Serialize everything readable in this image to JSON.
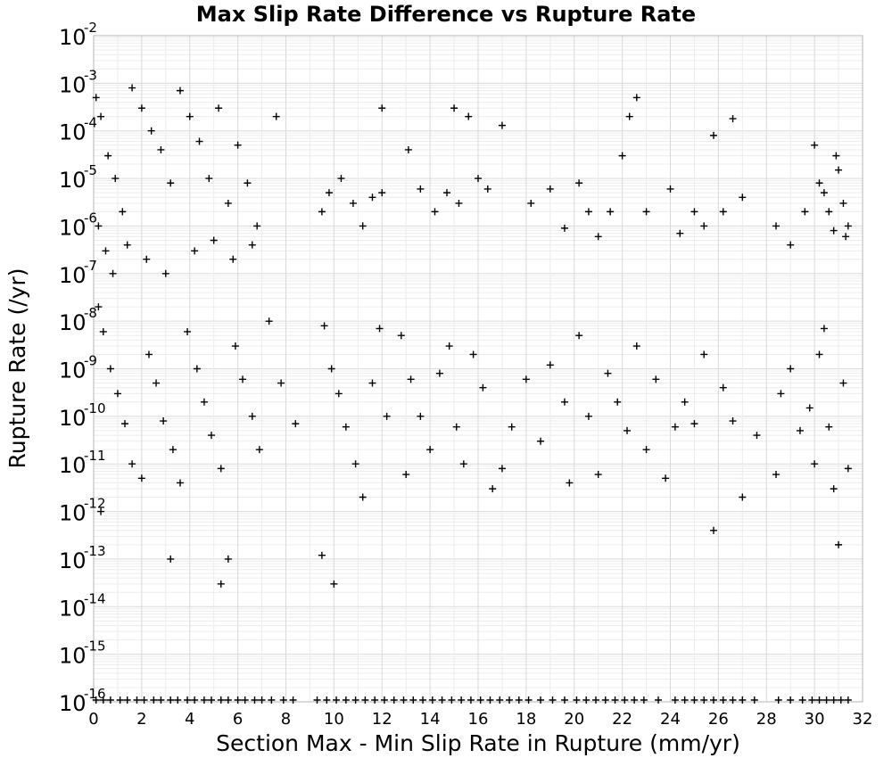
{
  "chart_data": {
    "type": "scatter",
    "title": "Max Slip Rate Difference vs Rupture Rate",
    "xlabel": "Section Max - Min Slip Rate in Rupture (mm/yr)",
    "ylabel": "Rupture Rate (/yr)",
    "xlim": [
      0,
      32
    ],
    "ylim": [
      1e-16,
      0.01
    ],
    "yscale": "log",
    "grid": true,
    "marker": "+",
    "marker_color": "#000000",
    "x_ticks": [
      "0",
      "2",
      "4",
      "6",
      "8",
      "10",
      "12",
      "14",
      "16",
      "18",
      "20",
      "22",
      "24",
      "26",
      "28",
      "30",
      "32"
    ],
    "y_ticks": [
      {
        "base": "10",
        "exp": "-2"
      },
      {
        "base": "10",
        "exp": "-3"
      },
      {
        "base": "10",
        "exp": "-4"
      },
      {
        "base": "10",
        "exp": "-5"
      },
      {
        "base": "10",
        "exp": "-6"
      },
      {
        "base": "10",
        "exp": "-7"
      },
      {
        "base": "10",
        "exp": "-8"
      },
      {
        "base": "10",
        "exp": "-9"
      },
      {
        "base": "10",
        "exp": "-10"
      },
      {
        "base": "10",
        "exp": "-11"
      },
      {
        "base": "10",
        "exp": "-12"
      },
      {
        "base": "10",
        "exp": "-13"
      },
      {
        "base": "10",
        "exp": "-14"
      },
      {
        "base": "10",
        "exp": "-15"
      },
      {
        "base": "10",
        "exp": "-16"
      }
    ],
    "points": [
      [
        0.1,
        0.0005
      ],
      [
        0.3,
        0.0002
      ],
      [
        0.6,
        3e-05
      ],
      [
        0.9,
        1e-05
      ],
      [
        1.2,
        2e-06
      ],
      [
        1.6,
        0.0008
      ],
      [
        2.0,
        0.0003
      ],
      [
        2.4,
        0.0001
      ],
      [
        2.8,
        4e-05
      ],
      [
        3.2,
        8e-06
      ],
      [
        3.6,
        0.0007
      ],
      [
        4.0,
        0.0002
      ],
      [
        4.4,
        6e-05
      ],
      [
        4.8,
        1e-05
      ],
      [
        5.2,
        0.0003
      ],
      [
        5.6,
        3e-06
      ],
      [
        6.0,
        5e-05
      ],
      [
        6.4,
        8e-06
      ],
      [
        6.8,
        1e-06
      ],
      [
        0.2,
        1e-06
      ],
      [
        0.5,
        3e-07
      ],
      [
        0.8,
        1e-07
      ],
      [
        1.4,
        4e-07
      ],
      [
        2.2,
        2e-07
      ],
      [
        3.0,
        1e-07
      ],
      [
        4.2,
        3e-07
      ],
      [
        5.0,
        5e-07
      ],
      [
        5.8,
        2e-07
      ],
      [
        6.6,
        4e-07
      ],
      [
        7.6,
        0.0002
      ],
      [
        9.5,
        2e-06
      ],
      [
        9.8,
        5e-06
      ],
      [
        10.3,
        1e-05
      ],
      [
        10.8,
        3e-06
      ],
      [
        11.2,
        1e-06
      ],
      [
        11.6,
        4e-06
      ],
      [
        12.0,
        0.0003
      ],
      [
        12.0,
        5e-06
      ],
      [
        13.1,
        4e-05
      ],
      [
        13.6,
        6e-06
      ],
      [
        14.2,
        2e-06
      ],
      [
        14.7,
        5e-06
      ],
      [
        15.0,
        0.0003
      ],
      [
        15.2,
        3e-06
      ],
      [
        15.6,
        0.0002
      ],
      [
        16.0,
        1e-05
      ],
      [
        16.4,
        6e-06
      ],
      [
        17.0,
        0.00013
      ],
      [
        18.2,
        3e-06
      ],
      [
        19.0,
        6e-06
      ],
      [
        19.6,
        9e-07
      ],
      [
        20.2,
        8e-06
      ],
      [
        20.6,
        2e-06
      ],
      [
        21.0,
        6e-07
      ],
      [
        21.5,
        2e-06
      ],
      [
        22.0,
        3e-05
      ],
      [
        22.3,
        0.0002
      ],
      [
        22.6,
        0.0005
      ],
      [
        23.0,
        2e-06
      ],
      [
        24.0,
        6e-06
      ],
      [
        24.4,
        7e-07
      ],
      [
        25.0,
        2e-06
      ],
      [
        25.4,
        1e-06
      ],
      [
        25.8,
        8e-05
      ],
      [
        26.2,
        2e-06
      ],
      [
        26.6,
        0.00018
      ],
      [
        27.0,
        4e-06
      ],
      [
        28.4,
        1e-06
      ],
      [
        29.0,
        4e-07
      ],
      [
        29.6,
        2e-06
      ],
      [
        30.0,
        5e-05
      ],
      [
        30.4,
        5e-06
      ],
      [
        30.6,
        2e-06
      ],
      [
        30.8,
        8e-07
      ],
      [
        31.0,
        1.5e-05
      ],
      [
        31.2,
        3e-06
      ],
      [
        31.4,
        1e-06
      ],
      [
        31.3,
        6e-07
      ],
      [
        30.9,
        3e-05
      ],
      [
        30.2,
        8e-06
      ],
      [
        0.2,
        2e-08
      ],
      [
        0.4,
        6e-09
      ],
      [
        0.7,
        1e-09
      ],
      [
        1.0,
        3e-10
      ],
      [
        1.3,
        7e-11
      ],
      [
        1.6,
        1e-11
      ],
      [
        2.0,
        5e-12
      ],
      [
        2.3,
        2e-09
      ],
      [
        2.6,
        5e-10
      ],
      [
        2.9,
        8e-11
      ],
      [
        3.3,
        2e-11
      ],
      [
        3.6,
        4e-12
      ],
      [
        3.9,
        6e-09
      ],
      [
        4.3,
        1e-09
      ],
      [
        4.6,
        2e-10
      ],
      [
        4.9,
        4e-11
      ],
      [
        5.3,
        8e-12
      ],
      [
        5.6,
        1e-13
      ],
      [
        5.9,
        3e-09
      ],
      [
        6.2,
        6e-10
      ],
      [
        6.6,
        1e-10
      ],
      [
        6.9,
        2e-11
      ],
      [
        7.3,
        1e-08
      ],
      [
        7.8,
        5e-10
      ],
      [
        8.4,
        7e-11
      ],
      [
        0.3,
        1e-12
      ],
      [
        3.2,
        1e-13
      ],
      [
        5.3,
        3e-14
      ],
      [
        9.5,
        1.2e-13
      ],
      [
        10.0,
        3e-14
      ],
      [
        9.6,
        8e-09
      ],
      [
        9.9,
        1e-09
      ],
      [
        10.2,
        3e-10
      ],
      [
        10.5,
        6e-11
      ],
      [
        10.9,
        1e-11
      ],
      [
        11.2,
        2e-12
      ],
      [
        11.6,
        5e-10
      ],
      [
        11.9,
        7e-09
      ],
      [
        12.2,
        1e-10
      ],
      [
        12.8,
        5e-09
      ],
      [
        13.2,
        6e-10
      ],
      [
        13.6,
        1e-10
      ],
      [
        14.0,
        2e-11
      ],
      [
        14.4,
        8e-10
      ],
      [
        14.8,
        3e-09
      ],
      [
        15.1,
        6e-11
      ],
      [
        15.4,
        1e-11
      ],
      [
        15.8,
        2e-09
      ],
      [
        16.2,
        4e-10
      ],
      [
        16.6,
        3e-12
      ],
      [
        17.4,
        6e-11
      ],
      [
        18.0,
        6e-10
      ],
      [
        18.6,
        3e-11
      ],
      [
        19.0,
        1.2e-09
      ],
      [
        19.6,
        2e-10
      ],
      [
        20.2,
        5e-09
      ],
      [
        20.6,
        1e-10
      ],
      [
        21.0,
        6e-12
      ],
      [
        21.4,
        8e-10
      ],
      [
        21.8,
        2e-10
      ],
      [
        22.2,
        5e-11
      ],
      [
        22.6,
        3e-09
      ],
      [
        23.0,
        2e-11
      ],
      [
        23.4,
        6e-10
      ],
      [
        23.8,
        5e-12
      ],
      [
        24.6,
        2e-10
      ],
      [
        25.0,
        7e-11
      ],
      [
        25.4,
        2e-09
      ],
      [
        25.8,
        4e-13
      ],
      [
        26.2,
        4e-10
      ],
      [
        26.6,
        8e-11
      ],
      [
        27.0,
        2e-12
      ],
      [
        28.4,
        6e-12
      ],
      [
        29.0,
        1e-09
      ],
      [
        29.4,
        5e-11
      ],
      [
        29.8,
        1.5e-10
      ],
      [
        30.2,
        2e-09
      ],
      [
        30.6,
        6e-11
      ],
      [
        30.8,
        3e-12
      ],
      [
        31.0,
        2e-13
      ],
      [
        31.2,
        5e-10
      ],
      [
        31.4,
        8e-12
      ],
      [
        30.4,
        7e-09
      ],
      [
        30.0,
        1e-11
      ],
      [
        28.6,
        3e-10
      ],
      [
        27.6,
        4e-11
      ],
      [
        24.2,
        6e-11
      ],
      [
        19.8,
        4e-12
      ],
      [
        17.0,
        8e-12
      ],
      [
        13.0,
        6e-12
      ]
    ],
    "zero_rate_points_x": [
      0.1,
      0.4,
      0.7,
      1.1,
      1.4,
      1.8,
      2.1,
      2.5,
      2.8,
      3.2,
      3.5,
      3.9,
      4.2,
      4.6,
      4.9,
      5.3,
      5.6,
      6.0,
      6.3,
      6.7,
      7.0,
      7.4,
      7.9,
      8.3,
      9.3,
      9.7,
      10.1,
      10.5,
      10.9,
      11.3,
      11.7,
      12.1,
      12.5,
      12.9,
      13.3,
      13.7,
      14.1,
      14.5,
      14.9,
      15.3,
      15.7,
      16.1,
      16.5,
      16.9,
      17.3,
      17.7,
      18.1,
      18.6,
      19.1,
      19.6,
      20.1,
      20.5,
      20.9,
      21.3,
      21.7,
      22.1,
      22.5,
      22.9,
      23.5,
      24.2,
      24.6,
      25.0,
      25.4,
      25.8,
      26.2,
      26.6,
      27.0,
      27.5,
      28.5,
      29.0,
      29.5,
      29.9,
      30.2,
      30.5,
      30.8,
      31.1,
      31.4
    ]
  }
}
